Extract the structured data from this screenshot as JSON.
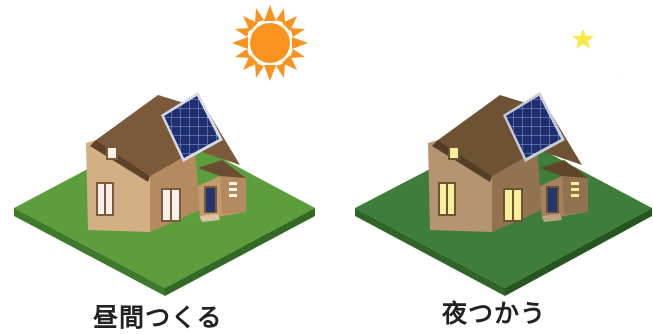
{
  "captions": {
    "day": "昼間つくる",
    "night": "夜つかう"
  },
  "icons": {
    "day": [
      "sun-icon",
      "house-icon",
      "solar-panel-icon"
    ],
    "night": [
      "moon-icon",
      "star-icon",
      "house-icon",
      "solar-panel-icon"
    ]
  },
  "colors": {
    "sun": "#f7931e",
    "moon": "#fce84a",
    "grass_day": "#5c9e3c",
    "grass_night": "#3f7d3a",
    "roof": "#7a5a3a",
    "wall_day": "#d3b083",
    "wall_night": "#b59470",
    "window_day": "#f6f1ea",
    "window_night": "#f8ef9a",
    "panel": "#1d2f6e",
    "caption": "#222222"
  }
}
